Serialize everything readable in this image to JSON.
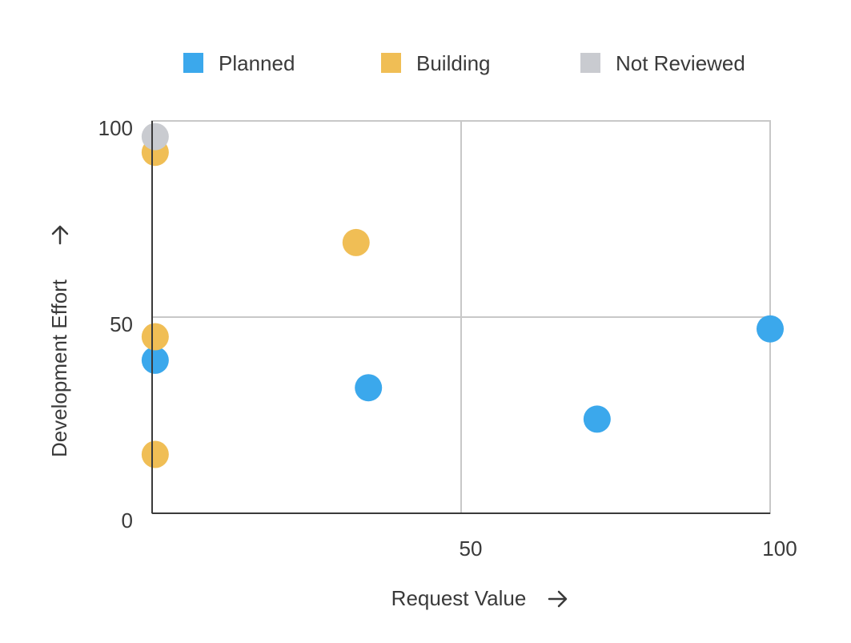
{
  "chart_data": {
    "type": "scatter",
    "title": "",
    "xlabel": "Request Value",
    "ylabel": "Development Effort",
    "xlim": [
      0,
      100
    ],
    "ylim": [
      0,
      100
    ],
    "x_ticks": [
      {
        "value": 50,
        "label": "50"
      },
      {
        "value": 100,
        "label": "100"
      }
    ],
    "y_ticks": [
      {
        "value": 0,
        "label": "0"
      },
      {
        "value": 50,
        "label": "50"
      },
      {
        "value": 100,
        "label": "100"
      }
    ],
    "grid": true,
    "legend_position": "top",
    "series": [
      {
        "name": "Planned",
        "color": "#3ba8ec",
        "points": [
          {
            "x": 0.5,
            "y": 39
          },
          {
            "x": 35,
            "y": 32
          },
          {
            "x": 72,
            "y": 24
          },
          {
            "x": 100,
            "y": 47
          }
        ]
      },
      {
        "name": "Building",
        "color": "#f0be55",
        "points": [
          {
            "x": 0.5,
            "y": 92
          },
          {
            "x": 33,
            "y": 69
          },
          {
            "x": 0.5,
            "y": 45
          },
          {
            "x": 0.5,
            "y": 15
          }
        ]
      },
      {
        "name": "Not Reviewed",
        "color": "#c9cbd0",
        "points": [
          {
            "x": 0.5,
            "y": 96
          }
        ]
      }
    ]
  }
}
